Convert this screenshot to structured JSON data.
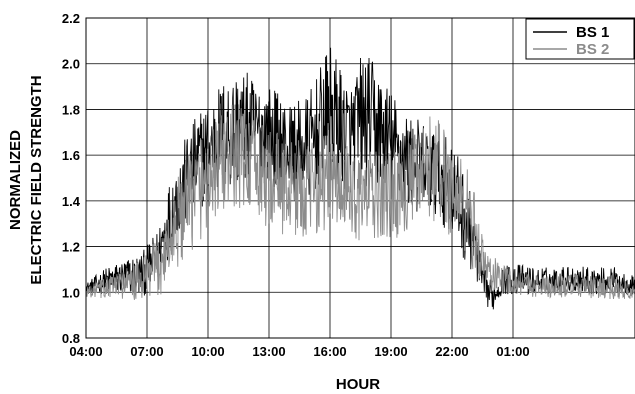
{
  "chart_data": {
    "type": "line",
    "title": "",
    "xlabel": "HOUR",
    "ylabel_lines": [
      "NORMALIZED",
      "ELECTRIC FIELD STRENGTH"
    ],
    "x_unit": "hours (04:00 on day 1 onward)",
    "xlim": [
      4,
      31
    ],
    "ylim": [
      0.8,
      2.2
    ],
    "x_ticks": [
      {
        "x": 4,
        "label": "04:00"
      },
      {
        "x": 7,
        "label": "07:00"
      },
      {
        "x": 10,
        "label": "10:00"
      },
      {
        "x": 13,
        "label": "13:00"
      },
      {
        "x": 16,
        "label": "16:00"
      },
      {
        "x": 19,
        "label": "19:00"
      },
      {
        "x": 22,
        "label": "22:00"
      },
      {
        "x": 25,
        "label": "01:00"
      }
    ],
    "y_ticks": [
      "0.8",
      "1.0",
      "1.2",
      "1.4",
      "1.6",
      "1.8",
      "2.0",
      "2.2"
    ],
    "grid": true,
    "legend_position": "top-right",
    "series": [
      {
        "name": "BS 1",
        "color": "#000000",
        "x": [
          4,
          5,
          6,
          6.8,
          7.5,
          8,
          8.5,
          9,
          9.5,
          10,
          10.5,
          11,
          11.5,
          12,
          12.5,
          13,
          13.5,
          14,
          14.5,
          15,
          15.5,
          16,
          16.5,
          17,
          17.5,
          18,
          18.5,
          19,
          19.5,
          20,
          20.5,
          21,
          21.5,
          22,
          22.5,
          23,
          23.3,
          23.6,
          24,
          24.5,
          25,
          26,
          27,
          28,
          29,
          30,
          31
        ],
        "y_base": [
          1.02,
          1.05,
          1.07,
          1.08,
          1.15,
          1.3,
          1.42,
          1.5,
          1.57,
          1.62,
          1.67,
          1.7,
          1.72,
          1.72,
          1.7,
          1.69,
          1.66,
          1.63,
          1.62,
          1.64,
          1.72,
          1.8,
          1.72,
          1.67,
          1.74,
          1.75,
          1.7,
          1.65,
          1.6,
          1.56,
          1.55,
          1.53,
          1.5,
          1.45,
          1.35,
          1.25,
          1.12,
          1.02,
          0.98,
          1.05,
          1.06,
          1.05,
          1.05,
          1.06,
          1.05,
          1.05,
          1.03
        ],
        "y_spread": [
          0.02,
          0.06,
          0.08,
          0.1,
          0.12,
          0.16,
          0.18,
          0.2,
          0.22,
          0.22,
          0.24,
          0.26,
          0.26,
          0.24,
          0.22,
          0.22,
          0.22,
          0.2,
          0.22,
          0.24,
          0.26,
          0.28,
          0.28,
          0.24,
          0.3,
          0.28,
          0.26,
          0.24,
          0.22,
          0.22,
          0.2,
          0.2,
          0.2,
          0.22,
          0.2,
          0.16,
          0.1,
          0.08,
          0.06,
          0.06,
          0.07,
          0.06,
          0.06,
          0.06,
          0.06,
          0.06,
          0.04
        ]
      },
      {
        "name": "BS 2",
        "color": "#8c8c8c",
        "x": [
          4,
          5,
          6,
          6.8,
          7.5,
          8,
          8.5,
          9,
          9.5,
          10,
          10.5,
          11,
          11.5,
          12,
          12.5,
          13,
          13.5,
          14,
          14.5,
          15,
          15.5,
          16,
          16.5,
          17,
          17.5,
          18,
          18.5,
          19,
          19.5,
          20,
          20.5,
          21,
          21.5,
          22,
          22.5,
          23,
          23.3,
          23.6,
          24,
          24.5,
          25,
          26,
          27,
          28,
          29,
          30,
          31
        ],
        "y_base": [
          1.0,
          1.02,
          1.04,
          1.05,
          1.1,
          1.2,
          1.3,
          1.38,
          1.45,
          1.5,
          1.55,
          1.58,
          1.6,
          1.57,
          1.52,
          1.5,
          1.48,
          1.46,
          1.45,
          1.45,
          1.48,
          1.5,
          1.44,
          1.44,
          1.42,
          1.42,
          1.42,
          1.42,
          1.45,
          1.48,
          1.5,
          1.55,
          1.52,
          1.45,
          1.38,
          1.3,
          1.2,
          1.12,
          1.08,
          1.06,
          1.05,
          1.03,
          1.02,
          1.03,
          1.02,
          1.02,
          1.0
        ],
        "y_spread": [
          0.02,
          0.05,
          0.07,
          0.1,
          0.14,
          0.18,
          0.2,
          0.22,
          0.24,
          0.22,
          0.22,
          0.24,
          0.24,
          0.22,
          0.22,
          0.22,
          0.22,
          0.22,
          0.22,
          0.2,
          0.22,
          0.22,
          0.2,
          0.2,
          0.2,
          0.2,
          0.2,
          0.2,
          0.2,
          0.2,
          0.22,
          0.24,
          0.24,
          0.22,
          0.22,
          0.2,
          0.14,
          0.1,
          0.08,
          0.07,
          0.06,
          0.05,
          0.05,
          0.05,
          0.05,
          0.05,
          0.03
        ]
      }
    ]
  }
}
